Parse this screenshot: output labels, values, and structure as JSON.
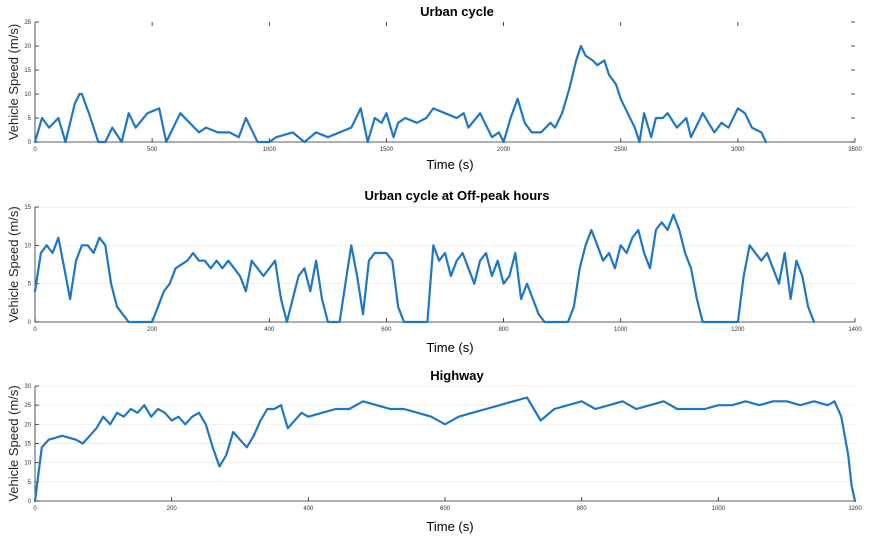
{
  "colors": {
    "series": "#1f77c4",
    "axis": "#262626"
  },
  "chart_data": [
    {
      "type": "line",
      "title": "Urban cycle",
      "xlabel": "Time (s)",
      "ylabel": "Vehicle Speed (m/s)",
      "xlim": [
        0,
        3500
      ],
      "ylim": [
        0,
        25
      ],
      "xticks": [
        0,
        500,
        1000,
        1500,
        2000,
        2500,
        3000,
        3500
      ],
      "yticks": [
        0,
        5,
        10,
        15,
        20,
        25
      ],
      "grid": false,
      "series": [
        {
          "x": [
            0,
            30,
            60,
            100,
            130,
            170,
            190,
            200,
            230,
            270,
            300,
            330,
            370,
            400,
            430,
            480,
            530,
            560,
            580,
            600,
            620,
            680,
            700,
            730,
            780,
            830,
            870,
            900,
            950,
            980,
            1000,
            1030,
            1100,
            1150,
            1200,
            1250,
            1300,
            1350,
            1390,
            1420,
            1450,
            1480,
            1500,
            1530,
            1550,
            1580,
            1630,
            1670,
            1700,
            1750,
            1800,
            1830,
            1850,
            1900,
            1950,
            1980,
            2000,
            2030,
            2060,
            2090,
            2120,
            2160,
            2200,
            2220,
            2250,
            2280,
            2310,
            2330,
            2350,
            2380,
            2400,
            2430,
            2450,
            2480,
            2500,
            2530,
            2560,
            2580,
            2600,
            2630,
            2650,
            2680,
            2700,
            2740,
            2780,
            2800,
            2850,
            2900,
            2930,
            2960,
            3000,
            3030,
            3060,
            3100,
            3120
          ],
          "y": [
            0,
            5,
            3,
            5,
            0,
            8,
            10,
            10,
            6,
            0,
            0,
            3,
            0,
            6,
            3,
            6,
            7,
            0,
            2,
            4,
            6,
            3,
            2,
            3,
            2,
            2,
            1,
            5,
            0,
            0,
            0,
            1,
            2,
            0,
            2,
            1,
            2,
            3,
            7,
            0,
            5,
            4,
            6,
            1,
            4,
            5,
            4,
            5,
            7,
            6,
            5,
            6,
            3,
            6,
            1,
            2,
            0,
            5,
            9,
            4,
            2,
            2,
            4,
            3,
            6,
            11,
            17,
            20,
            18,
            17,
            16,
            17,
            14,
            12,
            9,
            6,
            3,
            0,
            6,
            1,
            5,
            5,
            6,
            3,
            5,
            1,
            6,
            2,
            4,
            3,
            7,
            6,
            3,
            2,
            0
          ]
        }
      ]
    },
    {
      "type": "line",
      "title": "Urban cycle at Off-peak hours",
      "xlabel": "Time (s)",
      "ylabel": "Vehicle Speed (m/s)",
      "xlim": [
        0,
        1400
      ],
      "ylim": [
        0,
        15
      ],
      "xticks": [
        0,
        200,
        400,
        600,
        800,
        1000,
        1200,
        1400
      ],
      "yticks": [
        0,
        5,
        10,
        15
      ],
      "grid": true,
      "series": [
        {
          "x": [
            0,
            10,
            20,
            30,
            40,
            50,
            60,
            70,
            80,
            90,
            100,
            110,
            120,
            130,
            140,
            160,
            170,
            180,
            190,
            200,
            210,
            220,
            230,
            240,
            260,
            270,
            280,
            290,
            300,
            310,
            320,
            330,
            340,
            350,
            360,
            370,
            380,
            390,
            400,
            410,
            420,
            430,
            440,
            450,
            460,
            470,
            480,
            490,
            500,
            510,
            520,
            530,
            540,
            550,
            560,
            570,
            580,
            590,
            600,
            610,
            620,
            630,
            640,
            650,
            660,
            670,
            680,
            690,
            700,
            710,
            720,
            730,
            740,
            750,
            760,
            770,
            780,
            790,
            800,
            810,
            820,
            830,
            840,
            850,
            860,
            870,
            880,
            890,
            900,
            910,
            920,
            930,
            940,
            950,
            960,
            970,
            980,
            990,
            1000,
            1010,
            1020,
            1030,
            1040,
            1050,
            1060,
            1070,
            1080,
            1090,
            1100,
            1110,
            1120,
            1130,
            1140,
            1150,
            1160,
            1170,
            1180,
            1190,
            1200,
            1210,
            1220,
            1230,
            1240,
            1250,
            1260,
            1270,
            1280,
            1290,
            1300,
            1310,
            1320,
            1330
          ],
          "y": [
            4,
            9,
            10,
            9,
            11,
            7,
            3,
            8,
            10,
            10,
            9,
            11,
            10,
            5,
            2,
            0,
            0,
            0,
            0,
            0,
            2,
            4,
            5,
            7,
            8,
            9,
            8,
            8,
            7,
            8,
            7,
            8,
            7,
            6,
            4,
            8,
            7,
            6,
            7,
            8,
            3,
            0,
            3,
            6,
            7,
            4,
            8,
            3,
            0,
            0,
            0,
            5,
            10,
            6,
            1,
            8,
            9,
            9,
            9,
            8,
            2,
            0,
            0,
            0,
            0,
            0,
            10,
            8,
            9,
            6,
            8,
            9,
            7,
            5,
            8,
            9,
            6,
            8,
            5,
            6,
            9,
            3,
            5,
            3,
            1,
            0,
            0,
            0,
            0,
            0,
            2,
            7,
            10,
            12,
            10,
            8,
            9,
            7,
            10,
            9,
            11,
            12,
            9,
            7,
            12,
            13,
            12,
            14,
            12,
            9,
            7,
            3,
            0,
            0,
            0,
            0,
            0,
            0,
            0,
            6,
            10,
            9,
            8,
            9,
            7,
            5,
            9,
            3,
            8,
            6,
            2,
            0
          ]
        }
      ]
    },
    {
      "type": "line",
      "title": "Highway",
      "xlabel": "Time (s)",
      "ylabel": "Vehicle Speed (m/s)",
      "xlim": [
        0,
        1200
      ],
      "ylim": [
        0,
        30
      ],
      "xticks": [
        0,
        200,
        400,
        600,
        800,
        1000,
        1200
      ],
      "yticks": [
        0,
        5,
        10,
        15,
        20,
        25,
        30
      ],
      "grid": true,
      "series": [
        {
          "x": [
            0,
            10,
            20,
            40,
            60,
            70,
            80,
            90,
            100,
            110,
            120,
            130,
            140,
            150,
            160,
            170,
            180,
            190,
            200,
            210,
            220,
            230,
            240,
            250,
            260,
            270,
            280,
            290,
            300,
            310,
            320,
            330,
            340,
            350,
            360,
            370,
            380,
            390,
            400,
            420,
            440,
            460,
            480,
            500,
            520,
            540,
            560,
            580,
            600,
            620,
            640,
            660,
            680,
            700,
            720,
            740,
            760,
            780,
            800,
            820,
            840,
            860,
            880,
            900,
            920,
            940,
            960,
            980,
            1000,
            1020,
            1040,
            1060,
            1080,
            1100,
            1120,
            1140,
            1160,
            1170,
            1180,
            1190,
            1195,
            1200
          ],
          "y": [
            0,
            14,
            16,
            17,
            16,
            15,
            17,
            19,
            22,
            20,
            23,
            22,
            24,
            23,
            25,
            22,
            24,
            23,
            21,
            22,
            20,
            22,
            23,
            20,
            14,
            9,
            12,
            18,
            16,
            14,
            17,
            21,
            24,
            24,
            25,
            19,
            21,
            23,
            22,
            23,
            24,
            24,
            26,
            25,
            24,
            24,
            23,
            22,
            20,
            22,
            23,
            24,
            25,
            26,
            27,
            21,
            24,
            25,
            26,
            24,
            25,
            26,
            24,
            25,
            26,
            24,
            24,
            24,
            25,
            25,
            26,
            25,
            26,
            26,
            25,
            26,
            25,
            26,
            22,
            12,
            4,
            0
          ]
        }
      ]
    }
  ]
}
